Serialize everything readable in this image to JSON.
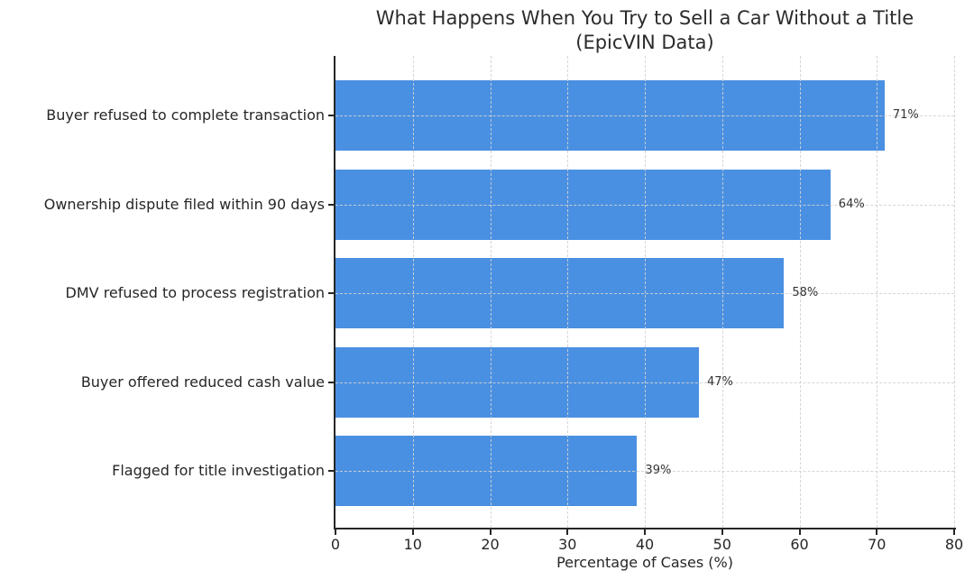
{
  "chart_data": {
    "type": "bar",
    "orientation": "horizontal",
    "title": "What Happens When You Try to Sell a Car Without a Title\n(EpicVIN Data)",
    "xlabel": "Percentage of Cases (%)",
    "categories": [
      "Buyer refused to complete transaction",
      "Ownership dispute filed within 90 days",
      "DMV refused to process registration",
      "Buyer offered reduced cash value",
      "Flagged for title investigation"
    ],
    "values": [
      71,
      64,
      58,
      47,
      39
    ],
    "value_labels": [
      "71%",
      "64%",
      "58%",
      "47%",
      "39%"
    ],
    "xlim": [
      0,
      80
    ],
    "xticks": [
      0,
      10,
      20,
      30,
      40,
      50,
      60,
      70,
      80
    ],
    "grid": "dashed, both axes",
    "legend_position": "none",
    "bar_color": "#4a90e2",
    "text_color": "#262626",
    "grid_color": "#d2d2d2",
    "spine_color": "#262626",
    "background_color": "#ffffff"
  }
}
